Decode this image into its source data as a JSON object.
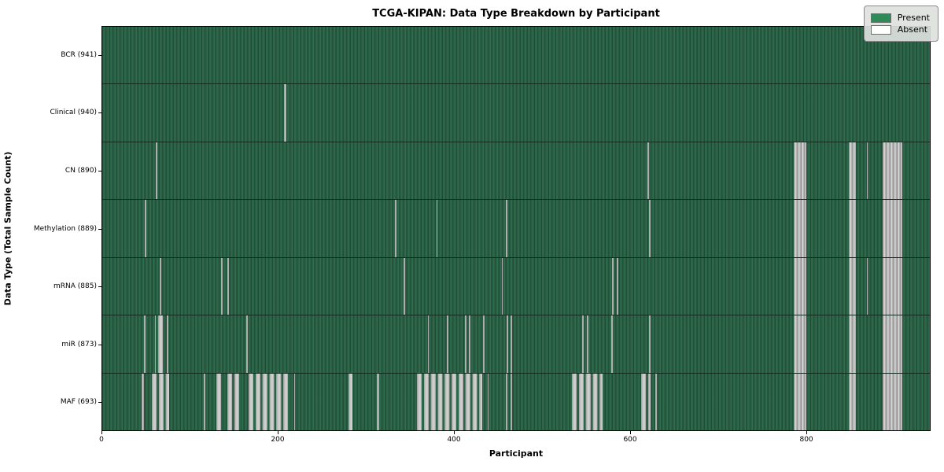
{
  "figure": {
    "title": "TCGA-KIPAN: Data Type Breakdown by Participant",
    "xlabel": "Participant",
    "ylabel": "Data Type (Total Sample Count)"
  },
  "legend": {
    "present_label": "Present",
    "absent_label": "Absent",
    "present_color": "#2e8b57",
    "absent_color": "#ffffff"
  },
  "colors": {
    "present_fill": "#2e6b4c",
    "absent_fill": "#bfbfbf",
    "frame": "#000000",
    "background": "#ffffff"
  },
  "chart_data": {
    "type": "heatmap",
    "title": "TCGA-KIPAN: Data Type Breakdown by Participant",
    "xlabel": "Participant",
    "ylabel": "Data Type (Total Sample Count)",
    "x_range": [
      0,
      941
    ],
    "x_ticks": [
      0,
      200,
      400,
      600,
      800
    ],
    "legend_position": "upper right",
    "grid": false,
    "cell_states": [
      "Present",
      "Absent"
    ],
    "rows": [
      {
        "label": "BCR (941)",
        "data_type": "BCR",
        "sample_count": 941,
        "absent_segments": []
      },
      {
        "label": "Clinical (940)",
        "data_type": "Clinical",
        "sample_count": 940,
        "absent_segments": [
          [
            207,
            2,
            "s"
          ]
        ]
      },
      {
        "label": "CN (890)",
        "data_type": "CN",
        "sample_count": 890,
        "absent_segments": [
          [
            61,
            2,
            "s"
          ],
          [
            620,
            1.4,
            "s"
          ],
          [
            786,
            15,
            "g"
          ],
          [
            849,
            7.5,
            "g"
          ],
          [
            869.5,
            1,
            "s"
          ],
          [
            887,
            23,
            "g"
          ]
        ]
      },
      {
        "label": "Methylation (889)",
        "data_type": "Methylation",
        "sample_count": 889,
        "absent_segments": [
          [
            48.5,
            1.5,
            "s"
          ],
          [
            333,
            1.5,
            "s"
          ],
          [
            380,
            1.5,
            "s"
          ],
          [
            459,
            1.5,
            "s"
          ],
          [
            622,
            1.5,
            "s"
          ],
          [
            786,
            15,
            "g"
          ],
          [
            849,
            7.5,
            "g"
          ],
          [
            887,
            23,
            "g"
          ]
        ]
      },
      {
        "label": "mRNA (885)",
        "data_type": "mRNA",
        "sample_count": 885,
        "absent_segments": [
          [
            65,
            2,
            "s"
          ],
          [
            135,
            1.8,
            "s"
          ],
          [
            142,
            1.8,
            "s"
          ],
          [
            343,
            1.5,
            "s"
          ],
          [
            454,
            1.5,
            "s"
          ],
          [
            580,
            1.8,
            "s"
          ],
          [
            585,
            1.8,
            "s"
          ],
          [
            786,
            15,
            "g"
          ],
          [
            849,
            7.5,
            "g"
          ],
          [
            869.5,
            1,
            "s"
          ],
          [
            887,
            23,
            "g"
          ]
        ]
      },
      {
        "label": "miR (873)",
        "data_type": "miR",
        "sample_count": 873,
        "absent_segments": [
          [
            47.5,
            1.5,
            "s"
          ],
          [
            59.5,
            1.5,
            "s"
          ],
          [
            63.5,
            8,
            "c"
          ],
          [
            73.5,
            1.5,
            "s"
          ],
          [
            164,
            1.5,
            "s"
          ],
          [
            370,
            1.5,
            "s"
          ],
          [
            392,
            1.5,
            "s"
          ],
          [
            412.5,
            2,
            "s"
          ],
          [
            416.5,
            2,
            "s"
          ],
          [
            433,
            1.5,
            "s"
          ],
          [
            460,
            2,
            "s"
          ],
          [
            464,
            2,
            "s"
          ],
          [
            546,
            1.5,
            "s"
          ],
          [
            551,
            1.5,
            "s"
          ],
          [
            579,
            1.5,
            "s"
          ],
          [
            622,
            1.5,
            "s"
          ],
          [
            786,
            15,
            "g"
          ],
          [
            849,
            7.5,
            "g"
          ],
          [
            887,
            23,
            "g"
          ]
        ]
      },
      {
        "label": "MAF (693)",
        "data_type": "MAF",
        "sample_count": 693,
        "absent_segments": [
          [
            44.5,
            3,
            "s"
          ],
          [
            56.5,
            19.5,
            "c"
          ],
          [
            115,
            2,
            "s"
          ],
          [
            130,
            7,
            "c"
          ],
          [
            142,
            15,
            "c"
          ],
          [
            166,
            47.5,
            "c"
          ],
          [
            218,
            1.5,
            "s"
          ],
          [
            280,
            4.5,
            "c"
          ],
          [
            312.5,
            2,
            "s"
          ],
          [
            358,
            74,
            "c"
          ],
          [
            438,
            1.5,
            "s"
          ],
          [
            459,
            1.5,
            "s"
          ],
          [
            464.5,
            1.5,
            "s"
          ],
          [
            534,
            35,
            "c"
          ],
          [
            613,
            10.5,
            "c"
          ],
          [
            628.5,
            2.5,
            "s"
          ],
          [
            786,
            15,
            "g"
          ],
          [
            849,
            7.5,
            "g"
          ],
          [
            887,
            23,
            "g"
          ]
        ]
      }
    ]
  }
}
